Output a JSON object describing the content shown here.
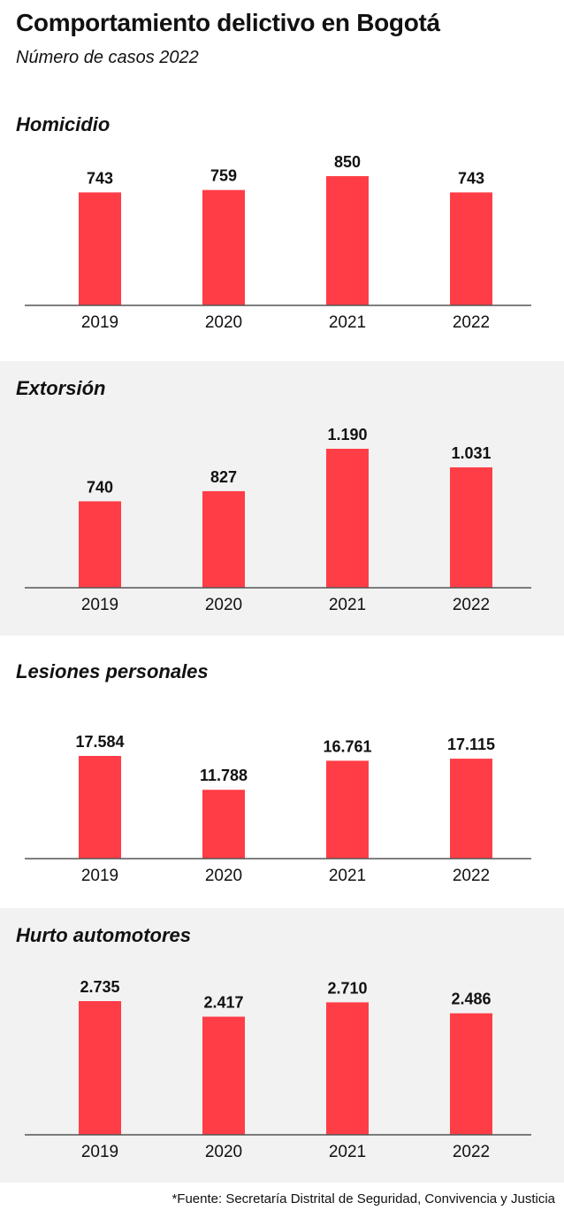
{
  "header": {
    "title": "Comportamiento delictivo en Bogotá",
    "subtitle": "Número de casos 2022"
  },
  "colors": {
    "bar": "#ff3d46",
    "shaded_panel": "#f2f2f2"
  },
  "chart_data": [
    {
      "type": "bar",
      "title": "Homicidio",
      "categories": [
        "2019",
        "2020",
        "2021",
        "2022"
      ],
      "values": [
        743,
        759,
        850,
        743
      ],
      "labels": [
        "743",
        "759",
        "850",
        "743"
      ],
      "ylim": [
        0,
        850
      ]
    },
    {
      "type": "bar",
      "title": "Extorsión",
      "categories": [
        "2019",
        "2020",
        "2021",
        "2022"
      ],
      "values": [
        740,
        827,
        1190,
        1031
      ],
      "labels": [
        "740",
        "827",
        "1.190",
        "1.031"
      ],
      "ylim": [
        0,
        1190
      ]
    },
    {
      "type": "bar",
      "title": "Lesiones personales",
      "categories": [
        "2019",
        "2020",
        "2021",
        "2022"
      ],
      "values": [
        17584,
        11788,
        16761,
        17115
      ],
      "labels": [
        "17.584",
        "11.788",
        "16.761",
        "17.115"
      ],
      "ylim": [
        0,
        17584
      ]
    },
    {
      "type": "bar",
      "title": "Hurto automotores",
      "categories": [
        "2019",
        "2020",
        "2021",
        "2022"
      ],
      "values": [
        2735,
        2417,
        2710,
        2486
      ],
      "labels": [
        "2.735",
        "2.417",
        "2.710",
        "2.486"
      ],
      "ylim": [
        0,
        2735
      ]
    }
  ],
  "footer": {
    "source": "*Fuente: Secretaría Distrital de Seguridad, Convivencia y Justicia"
  }
}
